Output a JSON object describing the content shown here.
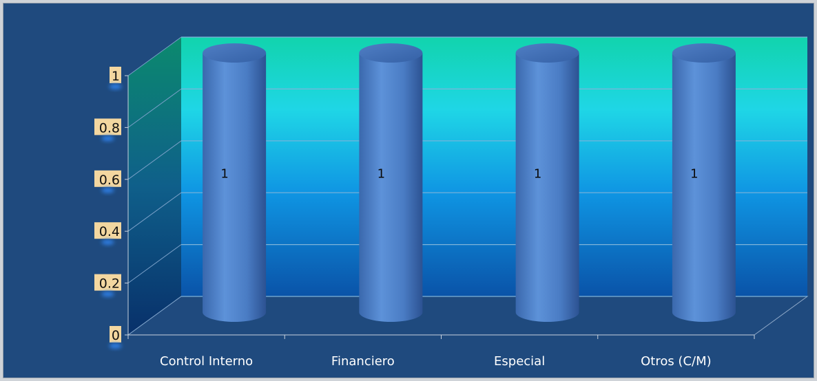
{
  "chart_data": {
    "type": "bar",
    "style": "3d-cylinder",
    "categories": [
      "Control Interno",
      "Financiero",
      "Especial",
      "Otros (C/M)"
    ],
    "values": [
      1,
      1,
      1,
      1
    ],
    "data_labels": [
      "1",
      "1",
      "1",
      "1"
    ],
    "ylim": [
      0,
      1
    ],
    "yticks": [
      "0",
      "0.2",
      "0.4",
      "0.6",
      "0.8",
      "1"
    ],
    "title": "",
    "xlabel": "",
    "ylabel": "",
    "grid": true,
    "legend": "none"
  },
  "colors": {
    "background": "#1f4a7e",
    "wall_top": "#11d4ad",
    "wall_mid": "#12a6e0",
    "wall_bottom": "#0a53a8",
    "bar_light": "#5b8fd6",
    "bar_dark": "#2d5799",
    "tick_label_bg": "#f3d7a0"
  }
}
